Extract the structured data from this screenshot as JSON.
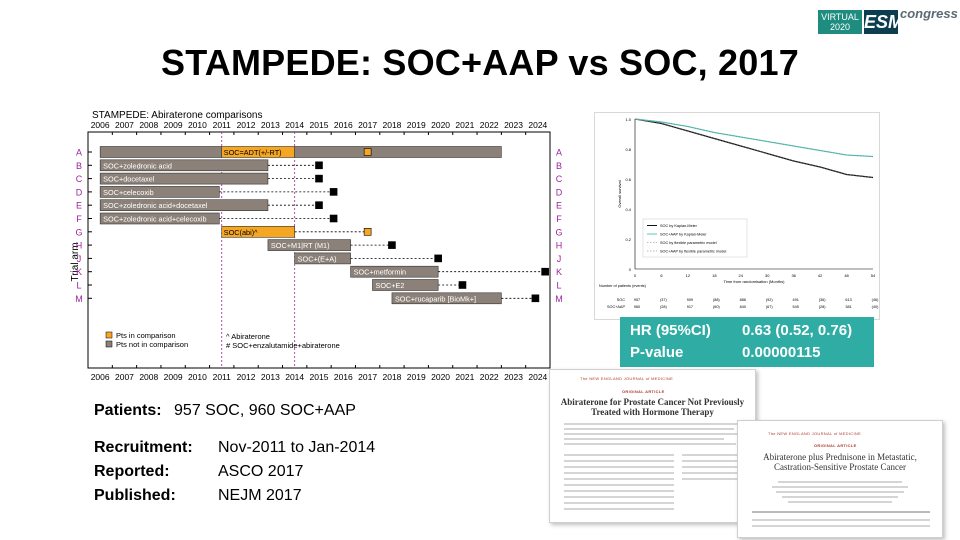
{
  "slide": {
    "title": "STAMPEDE: SOC+AAP vs SOC, 2017",
    "logo": {
      "virtual": "VIRTUAL",
      "year": "2020",
      "brand": "ESMO",
      "suffix": "congress"
    }
  },
  "trial_chart": {
    "panel_title": "STAMPEDE: Abiraterone comparisons",
    "years": [
      "2006",
      "2007",
      "2008",
      "2009",
      "2010",
      "2011",
      "2012",
      "2013",
      "2014",
      "2015",
      "2016",
      "2017",
      "2018",
      "2019",
      "2020",
      "2021",
      "2022",
      "2023",
      "2024"
    ],
    "y_axis_label": "Trial arm",
    "arms": [
      {
        "letter": "A",
        "label": "SOC=ADT(+/-RT)",
        "start": 2006.0,
        "end": 2022.5,
        "marker": 2017.0,
        "marker_type": "orange"
      },
      {
        "letter": "B",
        "label": "SOC+zoledronic acid",
        "start": 2006.0,
        "end": 2012.9,
        "marker": 2015.0,
        "marker_type": "black"
      },
      {
        "letter": "C",
        "label": "SOC+docetaxel",
        "start": 2006.0,
        "end": 2012.9,
        "marker": 2015.0,
        "marker_type": "black"
      },
      {
        "letter": "D",
        "label": "SOC+celecoxib",
        "start": 2006.0,
        "end": 2010.9,
        "marker": 2015.6,
        "marker_type": "black"
      },
      {
        "letter": "E",
        "label": "SOC+zoledronic acid+docetaxel",
        "start": 2006.0,
        "end": 2012.9,
        "marker": 2015.0,
        "marker_type": "black"
      },
      {
        "letter": "F",
        "label": "SOC+zoledronic acid+celecoxib",
        "start": 2006.0,
        "end": 2010.9,
        "marker": 2015.6,
        "marker_type": "black"
      },
      {
        "letter": "G",
        "label": "SOC(abi)^",
        "start": 2011.0,
        "end": 2014.0,
        "marker": 2017.0,
        "marker_type": "orange"
      },
      {
        "letter": "H",
        "label": "SOC+M1|RT (M1)",
        "start": 2012.9,
        "end": 2016.3,
        "marker": 2018.0,
        "marker_type": "black"
      },
      {
        "letter": "J",
        "label": "SOC+(E+A)",
        "start": 2014.0,
        "end": 2016.3,
        "marker": 2019.9,
        "marker_type": "black"
      },
      {
        "letter": "K",
        "label": "SOC+metformin",
        "start": 2016.3,
        "end": 2019.9,
        "marker": 2024.3,
        "marker_type": "black"
      },
      {
        "letter": "L",
        "label": "SOC+E2",
        "start": 2017.2,
        "end": 2019.9,
        "marker": 2020.9,
        "marker_type": "black"
      },
      {
        "letter": "M",
        "label": "SOC+rucaparib [BioMk+]",
        "start": 2018.0,
        "end": 2022.5,
        "marker": 2023.9,
        "marker_type": "black"
      }
    ],
    "legend": {
      "pts_in": "Pts in comparison",
      "pts_not_in": "Pts not in comparison",
      "note1": "^ Abiraterone",
      "note2": "# SOC+enzalutamide+abiraterone"
    },
    "colors": {
      "orange": "#f5a623",
      "gray": "#8c8179",
      "black": "#000000",
      "magenta": "#a020a0"
    }
  },
  "km_plot": {
    "legend": [
      "SOC by Kaplan-Meier",
      "SOC+AAP by Kaplan-Meier",
      "SOC by flexible parametric model",
      "SOC+AAP by flexible parametric model"
    ],
    "xlabel": "Time from randomisation (Months)",
    "ylabel": "Overall survival",
    "x_ticks": [
      "0",
      "6",
      "12",
      "18",
      "24",
      "30",
      "36",
      "42",
      "48",
      "54"
    ],
    "y_ticks": [
      "1.0",
      "0.8",
      "0.6",
      "0.4",
      "0.2",
      "0"
    ],
    "risk_header": "Number of patients (events)",
    "risk_rows": [
      {
        "label": "SOC",
        "values": [
          "957",
          "(37)",
          "909",
          "(88)",
          "886",
          "(92)",
          "491",
          "(36)",
          "613",
          "(46)"
        ]
      },
      {
        "label": "SOC+AAP",
        "values": [
          "960",
          "(28)",
          "917",
          "(60)",
          "840",
          "(67)",
          "545",
          "(28)",
          "381",
          "(40)"
        ]
      }
    ]
  },
  "hr_box": {
    "hr_label": "HR (95%CI)",
    "hr_value": "0.63 (0.52, 0.76)",
    "p_label": "P-value",
    "p_value": "0.00000115"
  },
  "info": {
    "patients_label": "Patients:",
    "patients_value": "957 SOC, 960  SOC+AAP",
    "recruitment_label": "Recruitment:",
    "recruitment_value": "Nov-2011 to Jan-2014",
    "reported_label": "Reported:",
    "reported_value": "ASCO 2017",
    "published_label": "Published:",
    "published_value": "NEJM 2017"
  },
  "papers": [
    {
      "header": "The NEW ENGLAND JOURNAL of MEDICINE",
      "kind": "ORIGINAL ARTICLE",
      "title": "Abiraterone for Prostate Cancer Not Previously Treated with Hormone Therapy"
    },
    {
      "header": "The NEW ENGLAND JOURNAL of MEDICINE",
      "kind": "ORIGINAL ARTICLE",
      "title": "Abiraterone plus Prednisone in Metastatic, Castration-Sensitive Prostate Cancer"
    }
  ]
}
